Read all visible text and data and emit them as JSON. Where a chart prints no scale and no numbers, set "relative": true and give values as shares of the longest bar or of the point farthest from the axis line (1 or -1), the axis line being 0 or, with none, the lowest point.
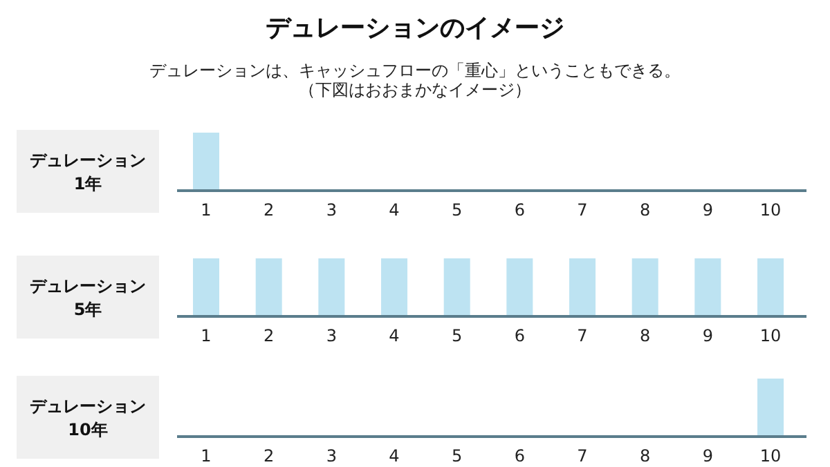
{
  "chart_data": [
    {
      "type": "bar",
      "title": "デュレーションのイメージ",
      "subtitle": "デュレーションは、キャッシュフローの「重心」ということもできる。",
      "annotations": [
        "（下図はおおまかなイメージ）"
      ],
      "ylabel": "デュレーション\n1年",
      "relative": true,
      "color": "#bde3f2",
      "categories": [
        "1",
        "2",
        "3",
        "4",
        "5",
        "6",
        "7",
        "8",
        "9",
        "10"
      ],
      "values": [
        1,
        0,
        0,
        0,
        0,
        0,
        0,
        0,
        0,
        0
      ]
    },
    {
      "type": "bar",
      "ylabel": "デュレーション\n5年",
      "relative": true,
      "color": "#bde3f2",
      "categories": [
        "1",
        "2",
        "3",
        "4",
        "5",
        "6",
        "7",
        "8",
        "9",
        "10"
      ],
      "values": [
        1,
        1,
        1,
        1,
        1,
        1,
        1,
        1,
        1,
        1
      ]
    },
    {
      "type": "bar",
      "ylabel": "デュレーション\n10年",
      "relative": true,
      "color": "#bde3f2",
      "categories": [
        "1",
        "2",
        "3",
        "4",
        "5",
        "6",
        "7",
        "8",
        "9",
        "10"
      ],
      "values": [
        0,
        0,
        0,
        0,
        0,
        0,
        0,
        0,
        0,
        1
      ]
    }
  ]
}
